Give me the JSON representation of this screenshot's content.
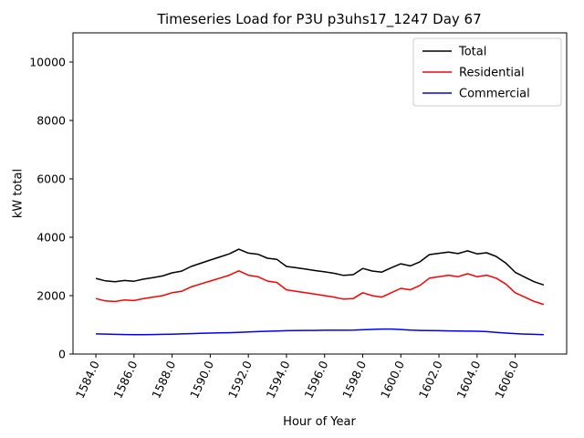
{
  "figure": {
    "title": "Timeseries Load for P3U p3uhs17_1247  Day 67",
    "xlabel": "Hour of Year",
    "ylabel": "kW total"
  },
  "chart_data": {
    "type": "line",
    "title": "Timeseries Load for P3U p3uhs17_1247  Day 67",
    "xlabel": "Hour of Year",
    "ylabel": "kW total",
    "xlim": [
      1582.8,
      1608.7
    ],
    "ylim": [
      0,
      11000
    ],
    "xticks": [
      1584,
      1586,
      1588,
      1590,
      1592,
      1594,
      1596,
      1598,
      1600,
      1602,
      1604,
      1606
    ],
    "xtick_labels": [
      "1584.0",
      "1586.0",
      "1588.0",
      "1590.0",
      "1592.0",
      "1594.0",
      "1596.0",
      "1598.0",
      "1600.0",
      "1602.0",
      "1604.0",
      "1606.0"
    ],
    "yticks": [
      0,
      2000,
      4000,
      6000,
      8000,
      10000
    ],
    "ytick_labels": [
      "0",
      "2000",
      "4000",
      "6000",
      "8000",
      "10000"
    ],
    "grid": false,
    "legend_position": "upper right",
    "x": [
      1584.0,
      1584.5,
      1585.0,
      1585.5,
      1586.0,
      1586.5,
      1587.0,
      1587.5,
      1588.0,
      1588.5,
      1589.0,
      1589.5,
      1590.0,
      1590.5,
      1591.0,
      1591.5,
      1592.0,
      1592.5,
      1593.0,
      1593.5,
      1594.0,
      1594.5,
      1595.0,
      1595.5,
      1596.0,
      1596.5,
      1597.0,
      1597.5,
      1598.0,
      1598.5,
      1599.0,
      1599.5,
      1600.0,
      1600.5,
      1601.0,
      1601.5,
      1602.0,
      1602.5,
      1603.0,
      1603.5,
      1604.0,
      1604.5,
      1605.0,
      1605.5,
      1606.0,
      1606.5,
      1607.0,
      1607.5
    ],
    "series": [
      {
        "name": "Total",
        "color": "#000000",
        "values": [
          2590,
          2505,
          2475,
          2520,
          2495,
          2565,
          2620,
          2675,
          2780,
          2840,
          3000,
          3110,
          3220,
          3325,
          3430,
          3590,
          3455,
          3420,
          3280,
          3240,
          3000,
          2955,
          2910,
          2860,
          2815,
          2765,
          2695,
          2720,
          2930,
          2845,
          2805,
          2955,
          3090,
          3020,
          3160,
          3405,
          3450,
          3495,
          3440,
          3535,
          3430,
          3470,
          3345,
          3120,
          2800,
          2635,
          2475,
          2365
        ]
      },
      {
        "name": "Residential",
        "color": "#ff0000",
        "values": [
          1900,
          1820,
          1800,
          1850,
          1830,
          1900,
          1950,
          2000,
          2100,
          2150,
          2300,
          2400,
          2500,
          2600,
          2700,
          2850,
          2700,
          2650,
          2500,
          2450,
          2200,
          2150,
          2100,
          2050,
          2000,
          1950,
          1880,
          1900,
          2100,
          2000,
          1950,
          2100,
          2250,
          2200,
          2350,
          2600,
          2650,
          2700,
          2650,
          2750,
          2650,
          2700,
          2600,
          2400,
          2100,
          1950,
          1800,
          1700
        ]
      },
      {
        "name": "Commercial",
        "color": "#0000ff",
        "values": [
          690,
          685,
          675,
          670,
          665,
          665,
          670,
          675,
          680,
          690,
          700,
          710,
          720,
          725,
          730,
          740,
          755,
          770,
          780,
          790,
          800,
          805,
          810,
          810,
          815,
          815,
          815,
          820,
          830,
          845,
          855,
          855,
          840,
          820,
          810,
          805,
          800,
          795,
          790,
          785,
          780,
          770,
          745,
          720,
          700,
          685,
          675,
          665
        ]
      }
    ]
  }
}
